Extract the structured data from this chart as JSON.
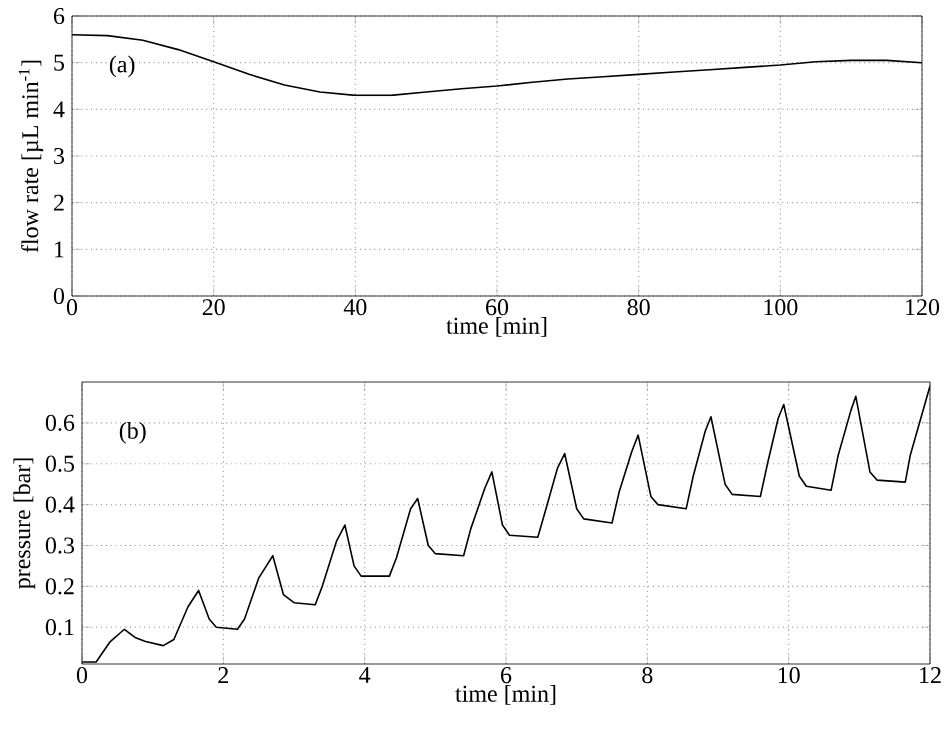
{
  "chart_data": [
    {
      "type": "line",
      "xlabel": "time [min]",
      "ylabel": "flow rate [µL min$^{-1}$]",
      "annotations": [
        "(a)"
      ],
      "xlim": [
        0,
        120
      ],
      "ylim": [
        0,
        6
      ],
      "xticks": [
        0,
        20,
        40,
        60,
        80,
        100,
        120
      ],
      "yticks": [
        0,
        1,
        2,
        3,
        4,
        5,
        6
      ],
      "grid": true,
      "series": [
        {
          "color": "#000000",
          "x": [
            0,
            5,
            10,
            15,
            20,
            25,
            30,
            35,
            40,
            45,
            50,
            55,
            60,
            65,
            70,
            75,
            80,
            85,
            90,
            95,
            100,
            105,
            110,
            115,
            120
          ],
          "values": [
            5.6,
            5.58,
            5.48,
            5.28,
            5.02,
            4.75,
            4.52,
            4.37,
            4.3,
            4.3,
            4.37,
            4.44,
            4.5,
            4.58,
            4.65,
            4.7,
            4.75,
            4.8,
            4.85,
            4.9,
            4.95,
            5.02,
            5.05,
            5.05,
            5.0
          ]
        }
      ]
    },
    {
      "type": "line",
      "xlabel": "time [min]",
      "ylabel": "pressure [bar]",
      "annotations": [
        "(b)"
      ],
      "xlim": [
        0,
        12
      ],
      "ylim": [
        0.01,
        0.7
      ],
      "xticks": [
        0,
        2,
        4,
        6,
        8,
        10,
        12
      ],
      "yticks": [
        0.1,
        0.2,
        0.3,
        0.4,
        0.5,
        0.6
      ],
      "grid": true,
      "series": [
        {
          "color": "#000000",
          "x": [
            0,
            0.2,
            0.3,
            0.4,
            0.6,
            0.75,
            0.9,
            1.15,
            1.3,
            1.5,
            1.65,
            1.8,
            1.9,
            2.2,
            2.3,
            2.5,
            2.7,
            2.85,
            3.0,
            3.3,
            3.4,
            3.6,
            3.72,
            3.85,
            3.95,
            4.35,
            4.45,
            4.65,
            4.75,
            4.9,
            5.0,
            5.4,
            5.5,
            5.7,
            5.8,
            5.95,
            6.05,
            6.45,
            6.55,
            6.73,
            6.83,
            7.0,
            7.1,
            7.5,
            7.6,
            7.78,
            7.87,
            8.05,
            8.15,
            8.55,
            8.65,
            8.82,
            8.9,
            9.1,
            9.2,
            9.6,
            9.7,
            9.85,
            9.93,
            10.15,
            10.25,
            10.6,
            10.7,
            10.88,
            10.95,
            11.15,
            11.25,
            11.65,
            11.72,
            12.0
          ],
          "values": [
            0.015,
            0.015,
            0.04,
            0.065,
            0.095,
            0.075,
            0.065,
            0.055,
            0.07,
            0.15,
            0.19,
            0.12,
            0.1,
            0.095,
            0.12,
            0.22,
            0.275,
            0.18,
            0.16,
            0.155,
            0.2,
            0.31,
            0.35,
            0.25,
            0.225,
            0.225,
            0.27,
            0.39,
            0.415,
            0.3,
            0.28,
            0.275,
            0.34,
            0.44,
            0.48,
            0.35,
            0.325,
            0.32,
            0.38,
            0.49,
            0.525,
            0.39,
            0.365,
            0.355,
            0.43,
            0.53,
            0.57,
            0.42,
            0.4,
            0.39,
            0.47,
            0.58,
            0.615,
            0.45,
            0.425,
            0.42,
            0.5,
            0.61,
            0.645,
            0.47,
            0.445,
            0.435,
            0.52,
            0.63,
            0.665,
            0.48,
            0.46,
            0.455,
            0.52,
            0.69
          ]
        }
      ]
    }
  ]
}
